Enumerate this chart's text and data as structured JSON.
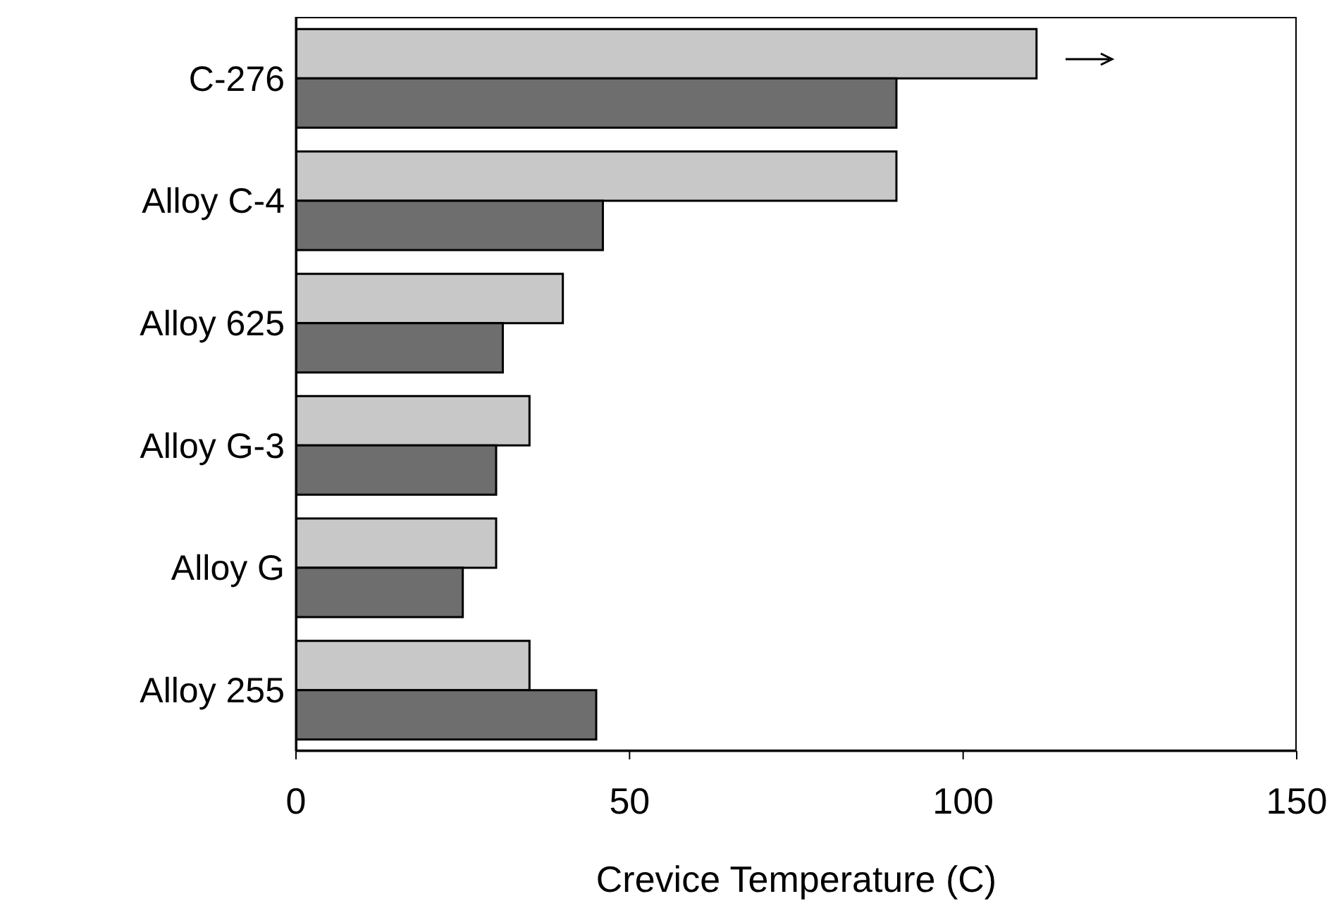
{
  "chart_data": {
    "type": "bar",
    "orientation": "horizontal",
    "xlabel": "Crevice Temperature (C)",
    "categories": [
      "C-276",
      "Alloy C-4",
      "Alloy 625",
      "Alloy G-3",
      "Alloy G",
      "Alloy 255"
    ],
    "series": [
      {
        "color": "#c8c8c8",
        "values": [
          111,
          90,
          40,
          35,
          30,
          35
        ]
      },
      {
        "color": "#6e6e6e",
        "values": [
          90,
          46,
          31,
          30,
          25,
          45
        ]
      }
    ],
    "xlim": [
      0,
      150
    ],
    "xticks": [
      0,
      50,
      100,
      150
    ],
    "grid": false,
    "legend": false
  }
}
